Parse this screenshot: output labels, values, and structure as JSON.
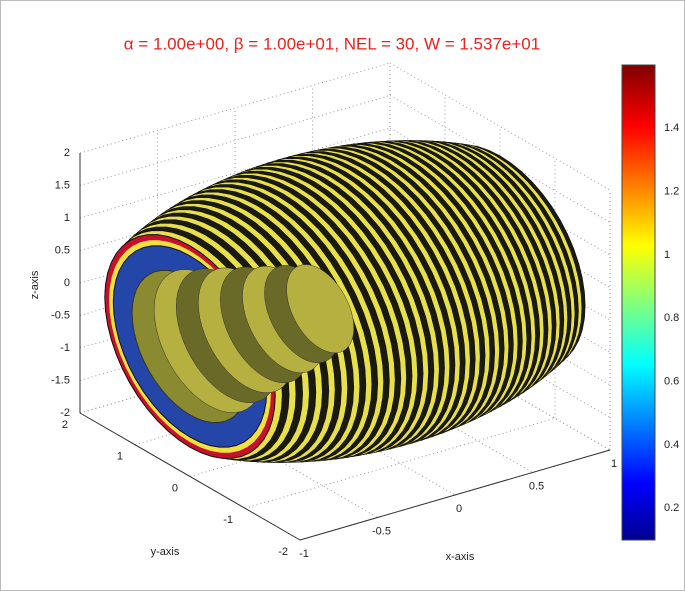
{
  "chart_data": {
    "type": "surface3d",
    "title": "α = 1.00e+00,  β = 1.00e+01,  NEL =  30,   W = 1.537e+01",
    "xlabel": "x-axis",
    "ylabel": "y-axis",
    "zlabel": "z-axis",
    "xlim": [
      -1,
      1
    ],
    "xticks": [
      -1,
      -0.5,
      0,
      0.5,
      1
    ],
    "ylim": [
      -2,
      2
    ],
    "yticks": [
      -2,
      -1,
      0,
      1,
      2
    ],
    "zlim": [
      -2,
      2
    ],
    "zticks": [
      -2,
      -1.5,
      -1,
      -0.5,
      0,
      0.5,
      1,
      1.5,
      2
    ],
    "colorbar": {
      "clim": [
        0.1,
        1.6
      ],
      "ticks": [
        0.2,
        0.4,
        0.6,
        0.8,
        1,
        1.2,
        1.4
      ]
    },
    "grid": true
  }
}
